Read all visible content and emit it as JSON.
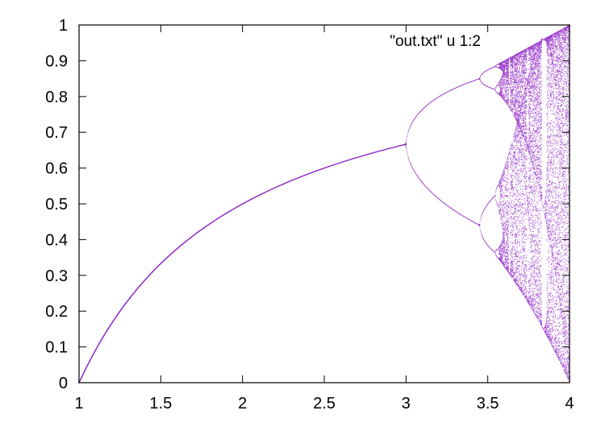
{
  "chart_data": {
    "type": "scatter",
    "title": "",
    "xlabel": "",
    "ylabel": "",
    "xlim": [
      1,
      4
    ],
    "ylim": [
      0,
      1
    ],
    "x_ticks": [
      1,
      1.5,
      2,
      2.5,
      3,
      3.5,
      4
    ],
    "x_tick_labels": [
      "1",
      "1.5",
      "2",
      "2.5",
      "3",
      "3.5",
      "4"
    ],
    "y_ticks": [
      0,
      0.1,
      0.2,
      0.3,
      0.4,
      0.5,
      0.6,
      0.7,
      0.8,
      0.9,
      1
    ],
    "y_tick_labels": [
      "0",
      "0.1",
      "0.2",
      "0.3",
      "0.4",
      "0.5",
      "0.6",
      "0.7",
      "0.8",
      "0.9",
      "1"
    ],
    "grid": false,
    "legend_position": "top-right",
    "series": [
      {
        "name": "\"out.txt\" u 1:2",
        "color": "#8b1ac4",
        "marker": "dot",
        "model": "logistic map x[n+1] = r*x[n]*(1-x[n]); x = r (1 to 4), y = long-run x",
        "notable_points": [
          {
            "x": 1.0,
            "y": 0.0
          },
          {
            "x": 2.0,
            "y": 0.5
          },
          {
            "x": 3.0,
            "y": 0.667
          },
          {
            "x": 3.45,
            "y": 0.44
          },
          {
            "x": 3.45,
            "y": 0.85
          },
          {
            "x": 3.57,
            "y": 0.36
          },
          {
            "x": 3.57,
            "y": 0.89
          },
          {
            "x": 3.83,
            "y": 0.96
          },
          {
            "x": 4.0,
            "y": 1.0
          }
        ]
      }
    ]
  }
}
